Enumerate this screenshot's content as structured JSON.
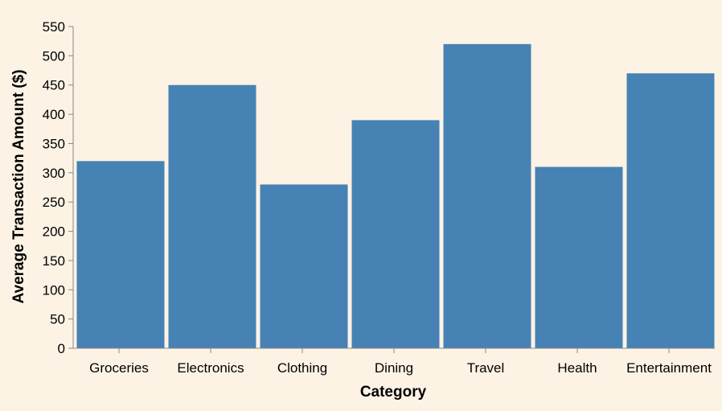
{
  "colors": {
    "background": "#fdf3e5",
    "bar": "#4682b4",
    "axis": "#888888"
  },
  "chart_data": {
    "type": "bar",
    "title": "",
    "xlabel": "Category",
    "ylabel": "Average Transaction Amount ($)",
    "categories": [
      "Groceries",
      "Electronics",
      "Clothing",
      "Dining",
      "Travel",
      "Health",
      "Entertainment"
    ],
    "values": [
      320,
      450,
      280,
      390,
      520,
      310,
      470
    ],
    "ylim": [
      0,
      550
    ],
    "yticks": [
      0,
      50,
      100,
      150,
      200,
      250,
      300,
      350,
      400,
      450,
      500,
      550
    ],
    "grid": false,
    "legend": "none"
  }
}
